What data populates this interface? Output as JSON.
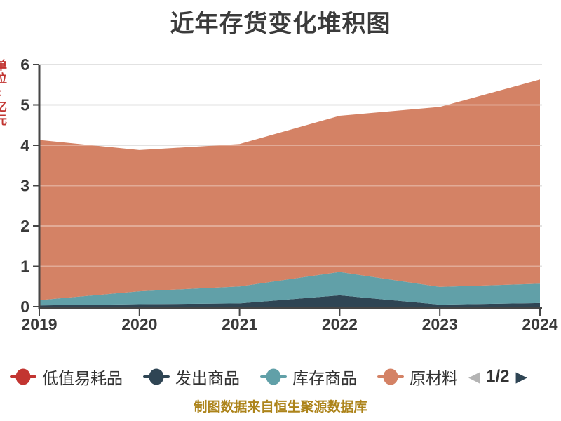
{
  "header": {
    "title": "近年存货变化堆积图"
  },
  "y_axis": {
    "unit_label": "单位:亿元"
  },
  "chart_data": {
    "type": "area",
    "stacked": true,
    "title": "近年存货变化堆积图",
    "categories": [
      "2019",
      "2020",
      "2021",
      "2022",
      "2023",
      "2024"
    ],
    "series": [
      {
        "name": "低值易耗品",
        "color": "#c23531",
        "values": [
          0,
          0,
          0,
          0,
          0,
          0
        ]
      },
      {
        "name": "发出商品",
        "color": "#2f4554",
        "values": [
          0.03,
          0.06,
          0.08,
          0.28,
          0.05,
          0.09
        ]
      },
      {
        "name": "库存商品",
        "color": "#61a0a8",
        "values": [
          0.13,
          0.32,
          0.42,
          0.58,
          0.44,
          0.48
        ]
      },
      {
        "name": "原材料",
        "color": "#d48265",
        "values": [
          3.97,
          3.5,
          3.53,
          3.87,
          4.46,
          5.06
        ]
      }
    ],
    "stack_totals": [
      4.13,
      3.88,
      4.03,
      4.73,
      4.95,
      5.63
    ],
    "xlabel": "",
    "ylabel": "单位:亿元",
    "ylim": [
      0,
      6
    ],
    "y_ticks": [
      0,
      1,
      2,
      3,
      4,
      5,
      6
    ],
    "grid": true,
    "legend_position": "bottom"
  },
  "legend": {
    "items": [
      {
        "label": "低值易耗品",
        "color": "#c23531"
      },
      {
        "label": "发出商品",
        "color": "#2f4554"
      },
      {
        "label": "库存商品",
        "color": "#61a0a8"
      },
      {
        "label": "原材料",
        "color": "#d48265"
      }
    ],
    "pager": {
      "text": "1/2",
      "prev_symbol": "◀",
      "next_symbol": "▶",
      "prev_color": "#b4b4b4",
      "next_color": "#2f4554"
    }
  },
  "footer": {
    "source_caption": "制图数据来自恒生聚源数据库"
  },
  "palette": {
    "axis_line": "#464646",
    "grid_line": "#d4d4d4",
    "tick_label": "#3a3a3a",
    "title": "#3b3b3b",
    "caption": "#ad841b"
  }
}
